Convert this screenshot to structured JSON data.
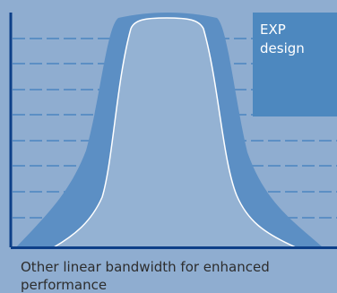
{
  "label_box": {
    "line1": "EXP",
    "line2": "design"
  },
  "caption": "Other linear bandwidth for enhanced performance",
  "colors": {
    "background": "#8fadd0",
    "outer_curve": "#5c8fc4",
    "inner_curve": "#94b2d3",
    "inner_outline": "#ffffff",
    "dashed_lines": "#5c8fc4",
    "axis": "#0d3f88",
    "label_box": "#4d88bf"
  }
}
